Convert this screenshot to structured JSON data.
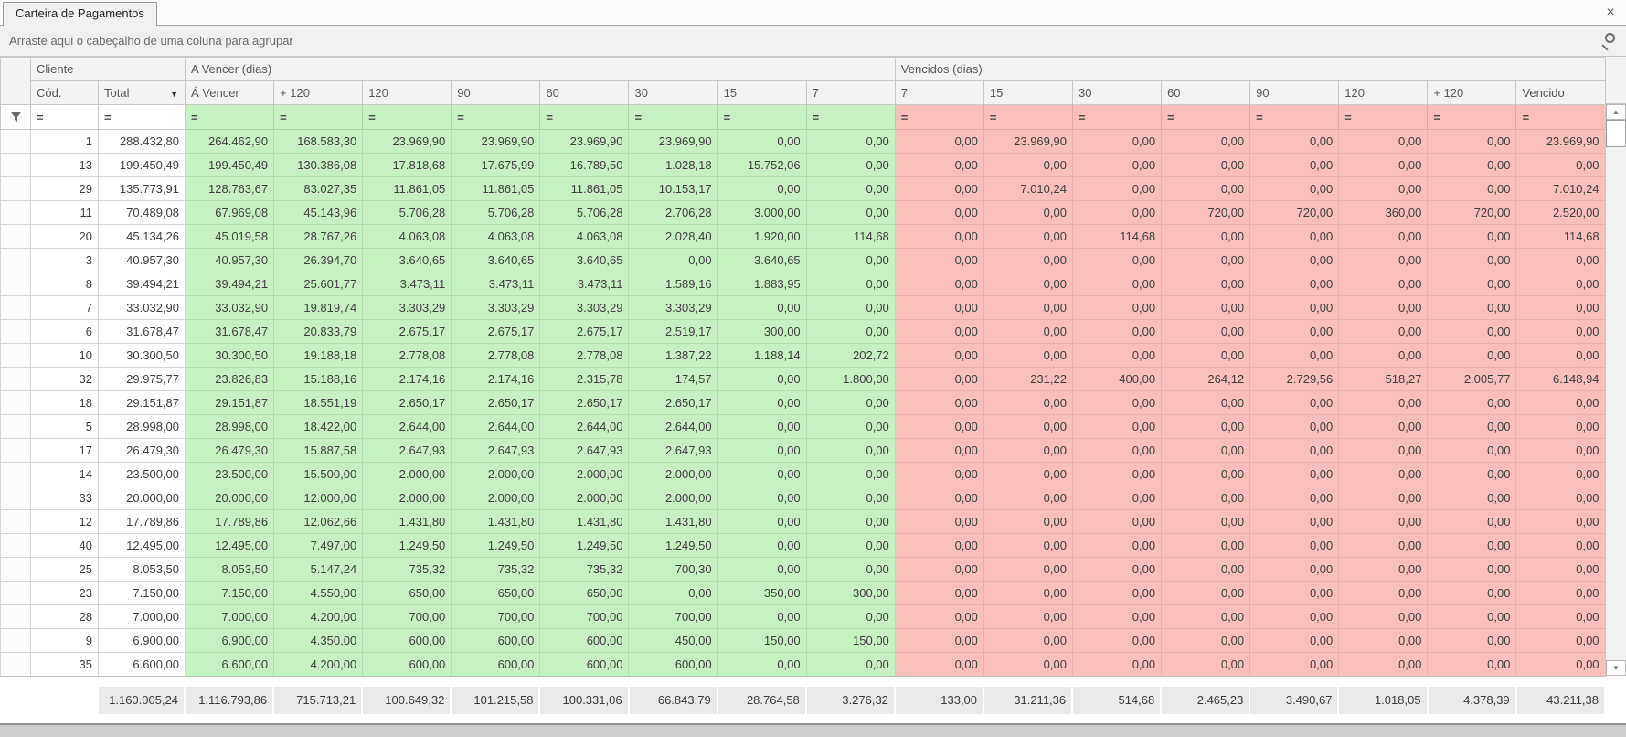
{
  "tab": {
    "title": "Carteira de Pagamentos"
  },
  "icons": {
    "close": "×",
    "sort_desc": "▼",
    "scroll_up": "▲",
    "scroll_down": "▼"
  },
  "group_panel": {
    "text": "Arraste aqui o cabeçalho de uma coluna para agrupar"
  },
  "bands": {
    "cliente": "Cliente",
    "a_vencer": "A Vencer (dias)",
    "vencidos": "Vencidos (dias)"
  },
  "columns": {
    "cod": "Cód.",
    "total": "Total",
    "a_vencer": [
      "Á Vencer",
      "+ 120",
      "120",
      "90",
      "60",
      "30",
      "15",
      "7"
    ],
    "vencidos": [
      "7",
      "15",
      "30",
      "60",
      "90",
      "120",
      "+ 120",
      "Vencido"
    ]
  },
  "filter_operator": "=",
  "colors": {
    "due_green": "#c6f1c0",
    "overdue_red": "#f8bfbd"
  },
  "rows": [
    {
      "cod": "1",
      "total": "288.432,80",
      "a_vencer": [
        "264.462,90",
        "168.583,30",
        "23.969,90",
        "23.969,90",
        "23.969,90",
        "23.969,90",
        "0,00",
        "0,00"
      ],
      "vencidos": [
        "0,00",
        "23.969,90",
        "0,00",
        "0,00",
        "0,00",
        "0,00",
        "0,00",
        "23.969,90"
      ]
    },
    {
      "cod": "13",
      "total": "199.450,49",
      "a_vencer": [
        "199.450,49",
        "130.386,08",
        "17.818,68",
        "17.675,99",
        "16.789,50",
        "1.028,18",
        "15.752,06",
        "0,00"
      ],
      "vencidos": [
        "0,00",
        "0,00",
        "0,00",
        "0,00",
        "0,00",
        "0,00",
        "0,00",
        "0,00"
      ]
    },
    {
      "cod": "29",
      "total": "135.773,91",
      "a_vencer": [
        "128.763,67",
        "83.027,35",
        "11.861,05",
        "11.861,05",
        "11.861,05",
        "10.153,17",
        "0,00",
        "0,00"
      ],
      "vencidos": [
        "0,00",
        "7.010,24",
        "0,00",
        "0,00",
        "0,00",
        "0,00",
        "0,00",
        "7.010,24"
      ]
    },
    {
      "cod": "11",
      "total": "70.489,08",
      "a_vencer": [
        "67.969,08",
        "45.143,96",
        "5.706,28",
        "5.706,28",
        "5.706,28",
        "2.706,28",
        "3.000,00",
        "0,00"
      ],
      "vencidos": [
        "0,00",
        "0,00",
        "0,00",
        "720,00",
        "720,00",
        "360,00",
        "720,00",
        "2.520,00"
      ]
    },
    {
      "cod": "20",
      "total": "45.134,26",
      "a_vencer": [
        "45.019,58",
        "28.767,26",
        "4.063,08",
        "4.063,08",
        "4.063,08",
        "2.028,40",
        "1.920,00",
        "114,68"
      ],
      "vencidos": [
        "0,00",
        "0,00",
        "114,68",
        "0,00",
        "0,00",
        "0,00",
        "0,00",
        "114,68"
      ]
    },
    {
      "cod": "3",
      "total": "40.957,30",
      "a_vencer": [
        "40.957,30",
        "26.394,70",
        "3.640,65",
        "3.640,65",
        "3.640,65",
        "0,00",
        "3.640,65",
        "0,00"
      ],
      "vencidos": [
        "0,00",
        "0,00",
        "0,00",
        "0,00",
        "0,00",
        "0,00",
        "0,00",
        "0,00"
      ]
    },
    {
      "cod": "8",
      "total": "39.494,21",
      "a_vencer": [
        "39.494,21",
        "25.601,77",
        "3.473,11",
        "3.473,11",
        "3.473,11",
        "1.589,16",
        "1.883,95",
        "0,00"
      ],
      "vencidos": [
        "0,00",
        "0,00",
        "0,00",
        "0,00",
        "0,00",
        "0,00",
        "0,00",
        "0,00"
      ]
    },
    {
      "cod": "7",
      "total": "33.032,90",
      "a_vencer": [
        "33.032,90",
        "19.819,74",
        "3.303,29",
        "3.303,29",
        "3.303,29",
        "3.303,29",
        "0,00",
        "0,00"
      ],
      "vencidos": [
        "0,00",
        "0,00",
        "0,00",
        "0,00",
        "0,00",
        "0,00",
        "0,00",
        "0,00"
      ]
    },
    {
      "cod": "6",
      "total": "31.678,47",
      "a_vencer": [
        "31.678,47",
        "20.833,79",
        "2.675,17",
        "2.675,17",
        "2.675,17",
        "2.519,17",
        "300,00",
        "0,00"
      ],
      "vencidos": [
        "0,00",
        "0,00",
        "0,00",
        "0,00",
        "0,00",
        "0,00",
        "0,00",
        "0,00"
      ]
    },
    {
      "cod": "10",
      "total": "30.300,50",
      "a_vencer": [
        "30.300,50",
        "19.188,18",
        "2.778,08",
        "2.778,08",
        "2.778,08",
        "1.387,22",
        "1.188,14",
        "202,72"
      ],
      "vencidos": [
        "0,00",
        "0,00",
        "0,00",
        "0,00",
        "0,00",
        "0,00",
        "0,00",
        "0,00"
      ]
    },
    {
      "cod": "32",
      "total": "29.975,77",
      "a_vencer": [
        "23.826,83",
        "15.188,16",
        "2.174,16",
        "2.174,16",
        "2.315,78",
        "174,57",
        "0,00",
        "1.800,00"
      ],
      "vencidos": [
        "0,00",
        "231,22",
        "400,00",
        "264,12",
        "2.729,56",
        "518,27",
        "2.005,77",
        "6.148,94"
      ]
    },
    {
      "cod": "18",
      "total": "29.151,87",
      "a_vencer": [
        "29.151,87",
        "18.551,19",
        "2.650,17",
        "2.650,17",
        "2.650,17",
        "2.650,17",
        "0,00",
        "0,00"
      ],
      "vencidos": [
        "0,00",
        "0,00",
        "0,00",
        "0,00",
        "0,00",
        "0,00",
        "0,00",
        "0,00"
      ]
    },
    {
      "cod": "5",
      "total": "28.998,00",
      "a_vencer": [
        "28.998,00",
        "18.422,00",
        "2.644,00",
        "2.644,00",
        "2.644,00",
        "2.644,00",
        "0,00",
        "0,00"
      ],
      "vencidos": [
        "0,00",
        "0,00",
        "0,00",
        "0,00",
        "0,00",
        "0,00",
        "0,00",
        "0,00"
      ]
    },
    {
      "cod": "17",
      "total": "26.479,30",
      "a_vencer": [
        "26.479,30",
        "15.887,58",
        "2.647,93",
        "2.647,93",
        "2.647,93",
        "2.647,93",
        "0,00",
        "0,00"
      ],
      "vencidos": [
        "0,00",
        "0,00",
        "0,00",
        "0,00",
        "0,00",
        "0,00",
        "0,00",
        "0,00"
      ]
    },
    {
      "cod": "14",
      "total": "23.500,00",
      "a_vencer": [
        "23.500,00",
        "15.500,00",
        "2.000,00",
        "2.000,00",
        "2.000,00",
        "2.000,00",
        "0,00",
        "0,00"
      ],
      "vencidos": [
        "0,00",
        "0,00",
        "0,00",
        "0,00",
        "0,00",
        "0,00",
        "0,00",
        "0,00"
      ]
    },
    {
      "cod": "33",
      "total": "20.000,00",
      "a_vencer": [
        "20.000,00",
        "12.000,00",
        "2.000,00",
        "2.000,00",
        "2.000,00",
        "2.000,00",
        "0,00",
        "0,00"
      ],
      "vencidos": [
        "0,00",
        "0,00",
        "0,00",
        "0,00",
        "0,00",
        "0,00",
        "0,00",
        "0,00"
      ]
    },
    {
      "cod": "12",
      "total": "17.789,86",
      "a_vencer": [
        "17.789,86",
        "12.062,66",
        "1.431,80",
        "1.431,80",
        "1.431,80",
        "1.431,80",
        "0,00",
        "0,00"
      ],
      "vencidos": [
        "0,00",
        "0,00",
        "0,00",
        "0,00",
        "0,00",
        "0,00",
        "0,00",
        "0,00"
      ]
    },
    {
      "cod": "40",
      "total": "12.495,00",
      "a_vencer": [
        "12.495,00",
        "7.497,00",
        "1.249,50",
        "1.249,50",
        "1.249,50",
        "1.249,50",
        "0,00",
        "0,00"
      ],
      "vencidos": [
        "0,00",
        "0,00",
        "0,00",
        "0,00",
        "0,00",
        "0,00",
        "0,00",
        "0,00"
      ]
    },
    {
      "cod": "25",
      "total": "8.053,50",
      "a_vencer": [
        "8.053,50",
        "5.147,24",
        "735,32",
        "735,32",
        "735,32",
        "700,30",
        "0,00",
        "0,00"
      ],
      "vencidos": [
        "0,00",
        "0,00",
        "0,00",
        "0,00",
        "0,00",
        "0,00",
        "0,00",
        "0,00"
      ]
    },
    {
      "cod": "23",
      "total": "7.150,00",
      "a_vencer": [
        "7.150,00",
        "4.550,00",
        "650,00",
        "650,00",
        "650,00",
        "0,00",
        "350,00",
        "300,00"
      ],
      "vencidos": [
        "0,00",
        "0,00",
        "0,00",
        "0,00",
        "0,00",
        "0,00",
        "0,00",
        "0,00"
      ]
    },
    {
      "cod": "28",
      "total": "7.000,00",
      "a_vencer": [
        "7.000,00",
        "4.200,00",
        "700,00",
        "700,00",
        "700,00",
        "700,00",
        "0,00",
        "0,00"
      ],
      "vencidos": [
        "0,00",
        "0,00",
        "0,00",
        "0,00",
        "0,00",
        "0,00",
        "0,00",
        "0,00"
      ]
    },
    {
      "cod": "9",
      "total": "6.900,00",
      "a_vencer": [
        "6.900,00",
        "4.350,00",
        "600,00",
        "600,00",
        "600,00",
        "450,00",
        "150,00",
        "150,00"
      ],
      "vencidos": [
        "0,00",
        "0,00",
        "0,00",
        "0,00",
        "0,00",
        "0,00",
        "0,00",
        "0,00"
      ]
    },
    {
      "cod": "35",
      "total": "6.600,00",
      "a_vencer": [
        "6.600,00",
        "4.200,00",
        "600,00",
        "600,00",
        "600,00",
        "600,00",
        "0,00",
        "0,00"
      ],
      "vencidos": [
        "0,00",
        "0,00",
        "0,00",
        "0,00",
        "0,00",
        "0,00",
        "0,00",
        "0,00"
      ]
    }
  ],
  "footer": {
    "total": "1.160.005,24",
    "a_vencer": [
      "1.116.793,86",
      "715.713,21",
      "100.649,32",
      "101.215,58",
      "100.331,06",
      "66.843,79",
      "28.764,58",
      "3.276,32"
    ],
    "vencidos": [
      "133,00",
      "31.211,36",
      "514,68",
      "2.465,23",
      "3.490,67",
      "1.018,05",
      "4.378,39",
      "43.211,38"
    ]
  }
}
